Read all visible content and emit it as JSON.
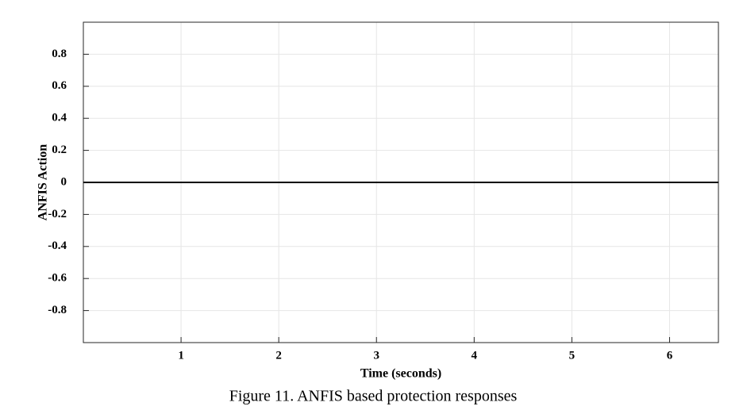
{
  "chart_data": {
    "type": "line",
    "caption": "Figure 11. ANFIS based protection responses",
    "x_label": "Time (seconds)",
    "y_label": "ANFIS Action",
    "x": [
      0,
      6.5
    ],
    "series": [
      {
        "name": "ANFIS Action",
        "color": "#000000",
        "values": [
          0,
          0
        ]
      }
    ],
    "xlim": [
      0,
      6.5
    ],
    "xticks": [
      1,
      2,
      3,
      4,
      5,
      6
    ],
    "ylim": [
      -1,
      1
    ],
    "yticks": [
      -0.8,
      -0.6,
      -0.4,
      -0.2,
      0,
      0.2,
      0.4,
      0.6,
      0.8
    ],
    "grid": true
  }
}
